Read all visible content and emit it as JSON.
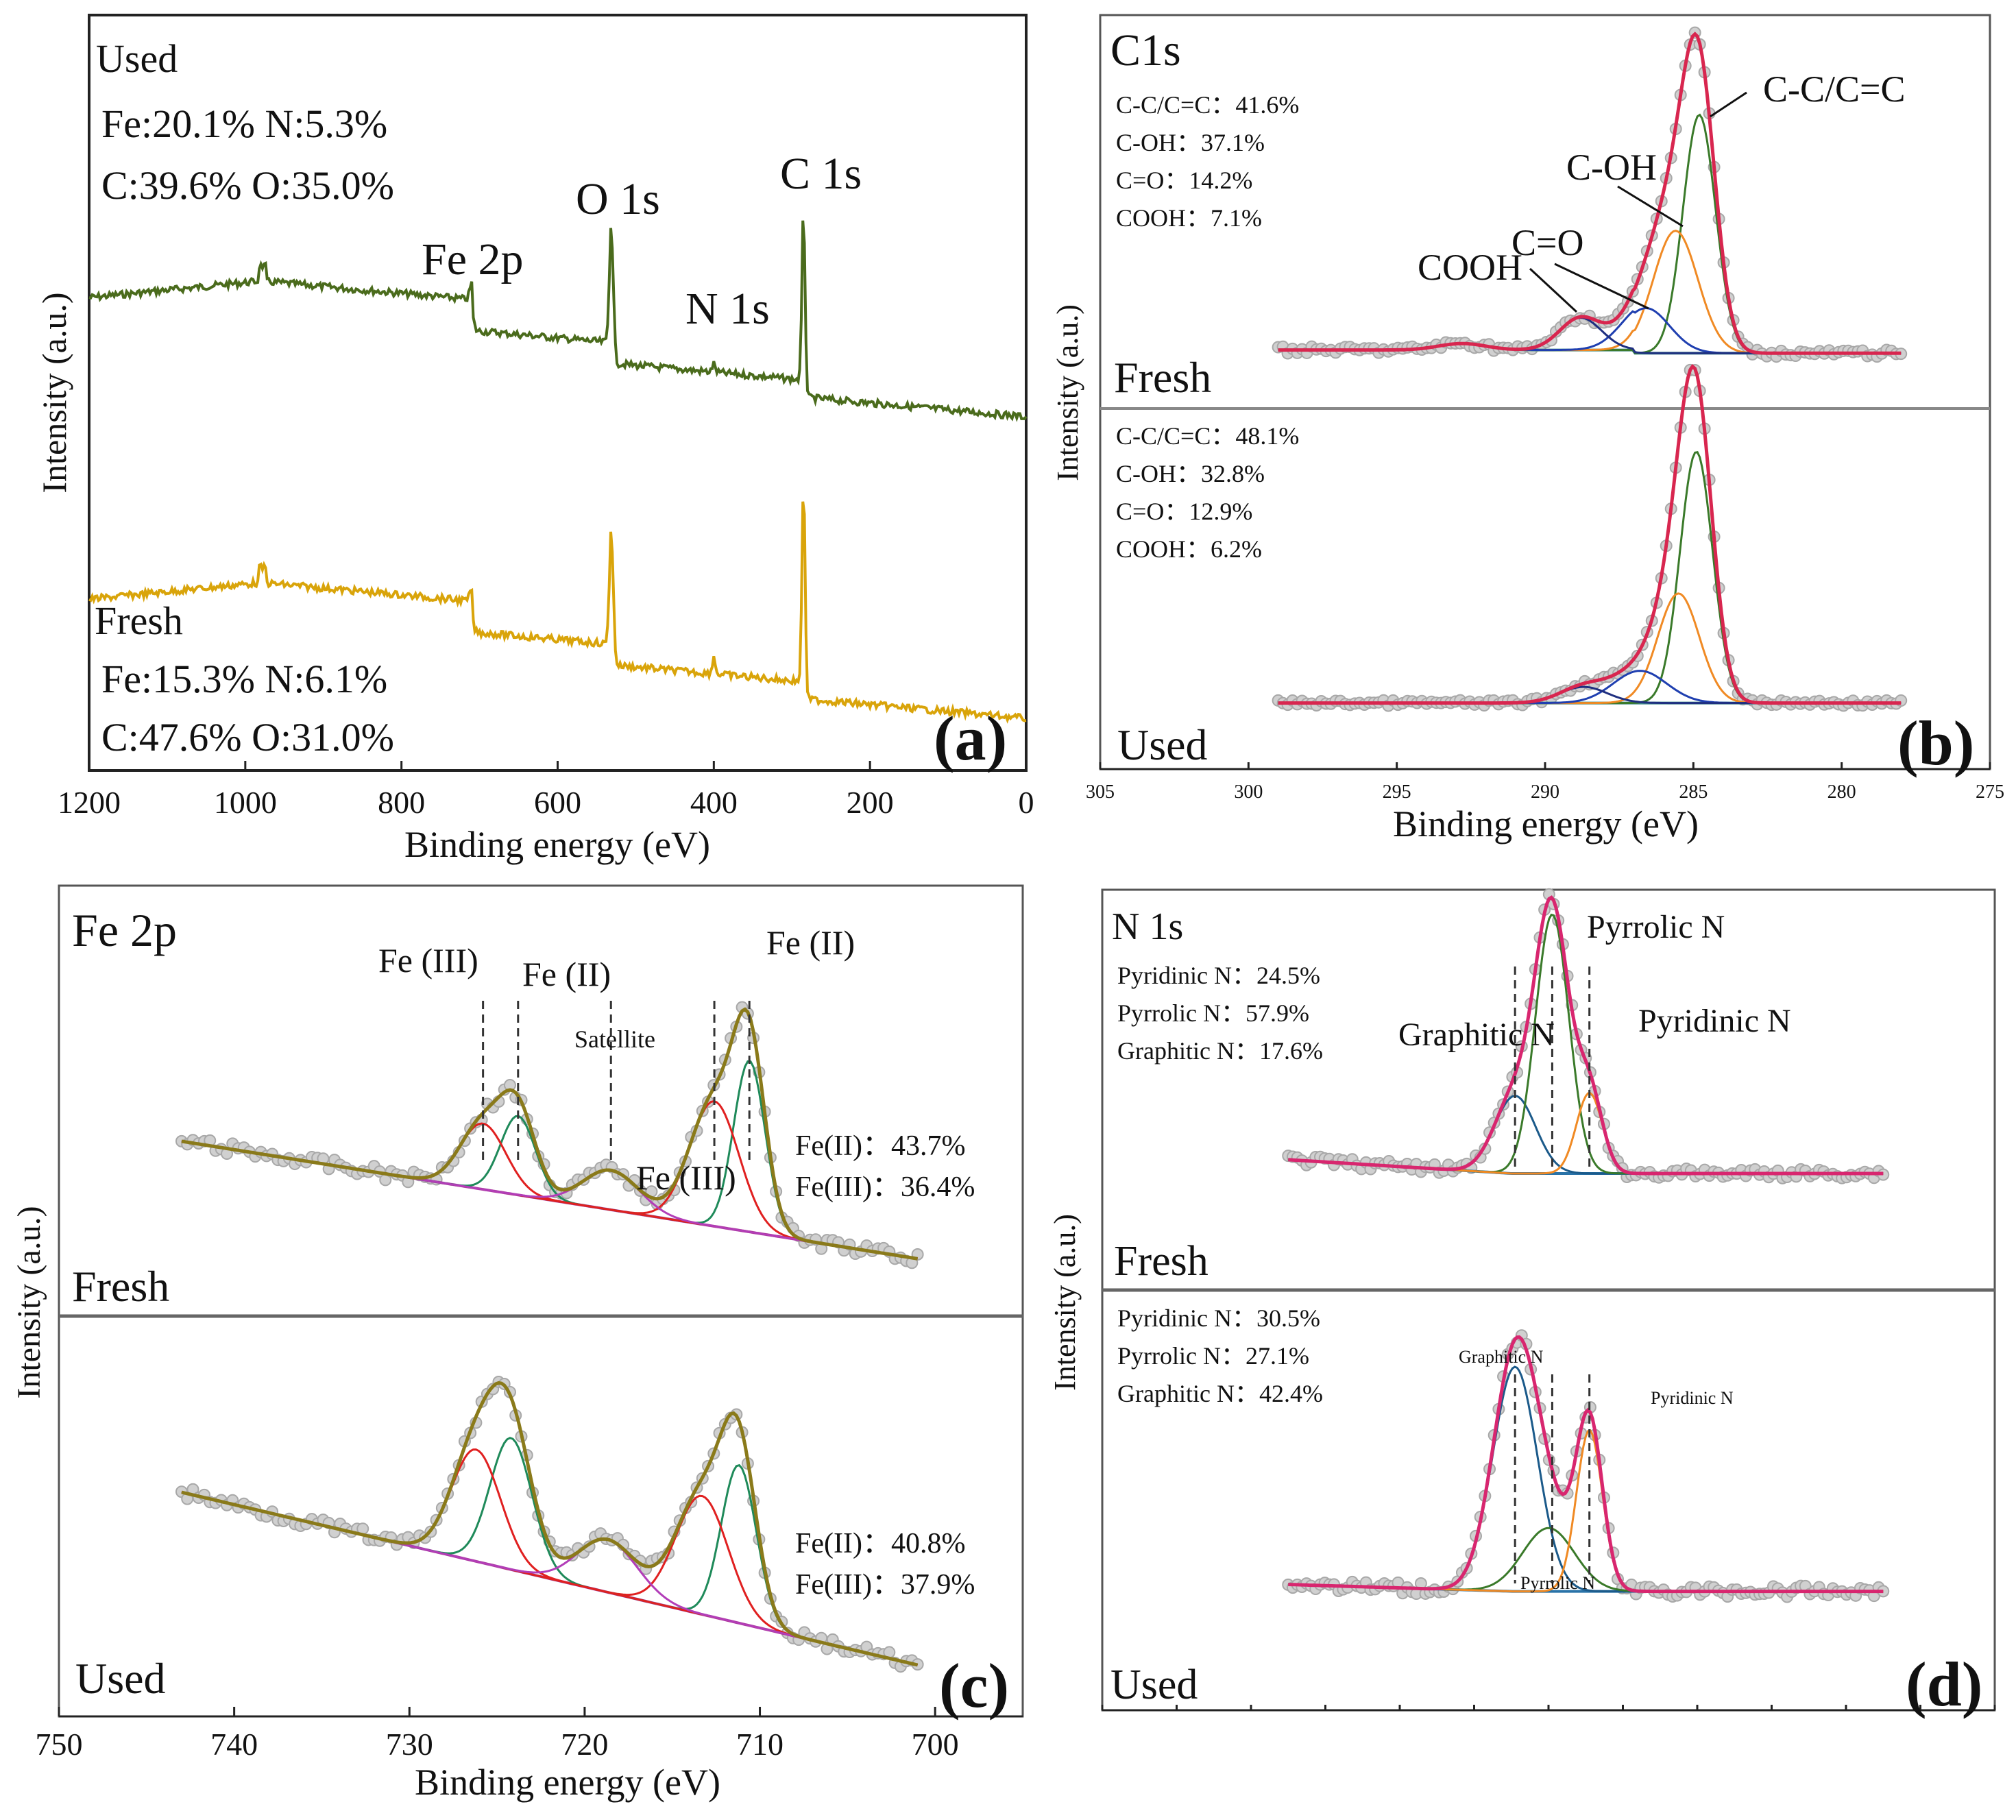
{
  "figure": "Fig",
  "colors": {
    "used_survey": "#4a6b1c",
    "fresh_survey": "#d9a40a",
    "raw_points": "#a8a8a8",
    "envelope_c": "#d8264f",
    "envelope_fe": "#8a7a1a",
    "envelope_n": "#d8266f",
    "baseline_c": "#3f8a8a",
    "baseline_fe": "#b23db8",
    "baseline_n": "#2a73a8",
    "comp_blue": "#1f3fb0",
    "comp_orange": "#f08a24",
    "comp_green": "#3a7a2a",
    "comp_red": "#e02020",
    "comp_teal": "#1f8a5a",
    "comp_navy": "#1b5a8a"
  },
  "chart_data": [
    {
      "id": "a",
      "type": "line",
      "panel_label": "(a)",
      "xlabel": "Binding energy (eV)",
      "ylabel": "Intensity (a.u.)",
      "xlim": [
        1200,
        0
      ],
      "xticks": [
        1200,
        1000,
        800,
        600,
        400,
        200,
        0
      ],
      "peak_labels": [
        "Fe 2p",
        "O 1s",
        "N 1s",
        "C 1s"
      ],
      "series": [
        {
          "name": "Used",
          "lines": [
            "Fe:20.1% N:5.3%",
            "C:39.6% O:35.0%"
          ],
          "peaks": [
            {
              "x": 710,
              "h": 0.08
            },
            {
              "x": 531,
              "h": 0.62
            },
            {
              "x": 400,
              "h": 0.04
            },
            {
              "x": 285,
              "h": 0.86
            }
          ]
        },
        {
          "name": "Fresh",
          "lines": [
            "Fe:15.3% N:6.1%",
            "C:47.6% O:31.0%"
          ],
          "peaks": [
            {
              "x": 710,
              "h": 0.06
            },
            {
              "x": 531,
              "h": 0.6
            },
            {
              "x": 400,
              "h": 0.08
            },
            {
              "x": 285,
              "h": 1.0
            }
          ]
        }
      ]
    },
    {
      "id": "b",
      "type": "line",
      "panel_label": "(b)",
      "title": "C1s",
      "xlabel": "Binding energy (eV)",
      "ylabel": "Intensity (a.u.)",
      "xlim": [
        305,
        275
      ],
      "xticks": [
        305,
        300,
        295,
        290,
        285,
        280,
        275
      ],
      "data_range": [
        299,
        278
      ],
      "component_labels": [
        "C-C/C=C",
        "C-OH",
        "C=O",
        "COOH"
      ],
      "panels": [
        {
          "name": "Fresh",
          "stats": [
            "C-C/C=C：41.6%",
            "C-OH：37.1%",
            "C=O：14.2%",
            "COOH：7.1%"
          ],
          "components": [
            {
              "label": "C-C/C=C",
              "center": 284.8,
              "amp": 0.74,
              "sigma": 0.55
            },
            {
              "label": "C-OH",
              "center": 285.6,
              "amp": 0.38,
              "sigma": 0.75
            },
            {
              "label": "C=O",
              "center": 286.6,
              "amp": 0.14,
              "sigma": 0.8
            },
            {
              "label": "COOH",
              "center": 288.8,
              "amp": 0.1,
              "sigma": 0.7
            }
          ]
        },
        {
          "name": "Used",
          "stats": [
            "C-C/C=C：48.1%",
            "C-OH：32.8%",
            "C=O：12.9%",
            "COOH：6.2%"
          ],
          "components": [
            {
              "label": "C-C/C=C",
              "center": 284.9,
              "amp": 0.78,
              "sigma": 0.55
            },
            {
              "label": "C-OH",
              "center": 285.5,
              "amp": 0.34,
              "sigma": 0.7
            },
            {
              "label": "C=O",
              "center": 286.8,
              "amp": 0.1,
              "sigma": 0.9
            },
            {
              "label": "COOH",
              "center": 288.7,
              "amp": 0.05,
              "sigma": 0.8
            }
          ]
        }
      ]
    },
    {
      "id": "c",
      "type": "line",
      "panel_label": "(c)",
      "title": "Fe 2p",
      "xlabel": "Binding energy (eV)",
      "ylabel": "Intensity (a.u.)",
      "xlim": [
        750,
        695
      ],
      "xticks": [
        750,
        740,
        730,
        720,
        710,
        700
      ],
      "data_range": [
        743,
        701
      ],
      "component_labels": [
        "Fe (III)",
        "Fe (II)",
        "Satellite",
        "Fe (II)",
        "Fe (III)"
      ],
      "panels": [
        {
          "name": "Fresh",
          "stats": [
            "Fe(II)：43.7%",
            "Fe(III)：36.4%"
          ],
          "components": [
            {
              "label": "Fe (II)",
              "center": 710.6,
              "amp": 0.52,
              "sigma": 0.9
            },
            {
              "label": "Fe (III)",
              "center": 712.6,
              "amp": 0.38,
              "sigma": 1.4
            },
            {
              "label": "Fe (II)",
              "center": 723.8,
              "amp": 0.24,
              "sigma": 1.0
            },
            {
              "label": "Fe (III)",
              "center": 725.8,
              "amp": 0.2,
              "sigma": 1.3
            },
            {
              "label": "Satellite",
              "center": 718.5,
              "amp": 0.12,
              "sigma": 1.6
            }
          ]
        },
        {
          "name": "Used",
          "stats": [
            "Fe(II)：40.8%",
            "Fe(III)：37.9%"
          ],
          "components": [
            {
              "label": "Fe (II)",
              "center": 711.2,
              "amp": 0.48,
              "sigma": 1.0
            },
            {
              "label": "Fe (III)",
              "center": 713.3,
              "amp": 0.36,
              "sigma": 1.5
            },
            {
              "label": "Fe (II)",
              "center": 724.2,
              "amp": 0.4,
              "sigma": 1.2
            },
            {
              "label": "Fe (III)",
              "center": 726.2,
              "amp": 0.34,
              "sigma": 1.4
            },
            {
              "label": "Satellite",
              "center": 718.7,
              "amp": 0.16,
              "sigma": 1.7
            }
          ]
        }
      ]
    },
    {
      "id": "d",
      "type": "line",
      "panel_label": "(d)",
      "title": "N 1s",
      "ylabel": "Intensity (a.u.)",
      "xlim": [
        412,
        388
      ],
      "data_range": [
        407,
        391
      ],
      "panels": [
        {
          "name": "Fresh",
          "stats": [
            "Pyridinic N：24.5%",
            "Pyrrolic N：57.9%",
            "Graphitic N：17.6%"
          ],
          "labels": [
            "Graphitic N",
            "Pyrrolic N",
            "Pyridinic N"
          ],
          "components": [
            {
              "label": "Graphitic N",
              "center": 400.9,
              "amp": 0.27,
              "sigma": 0.55
            },
            {
              "label": "Pyrrolic N",
              "center": 399.9,
              "amp": 0.9,
              "sigma": 0.45
            },
            {
              "label": "Pyridinic N",
              "center": 398.9,
              "amp": 0.28,
              "sigma": 0.35
            }
          ]
        },
        {
          "name": "Used",
          "stats": [
            "Pyridinic N：30.5%",
            "Pyrrolic N：27.1%",
            "Graphitic N：42.4%"
          ],
          "labels": [
            "Graphitic N",
            "Pyrrolic N",
            "Pyridinic N"
          ],
          "components": [
            {
              "label": "Graphitic N",
              "center": 400.9,
              "amp": 0.78,
              "sigma": 0.6
            },
            {
              "label": "Pyrrolic N",
              "center": 400.0,
              "amp": 0.22,
              "sigma": 0.7
            },
            {
              "label": "Pyridinic N",
              "center": 398.9,
              "amp": 0.56,
              "sigma": 0.35
            }
          ]
        }
      ]
    }
  ]
}
